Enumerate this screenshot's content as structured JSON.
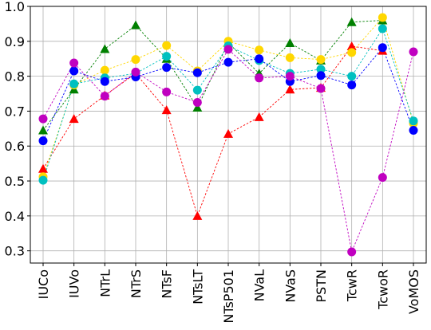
{
  "chart_data": {
    "type": "line",
    "title": "",
    "xlabel": "",
    "ylabel": "",
    "categories": [
      "IUCo",
      "IUVo",
      "NTrL",
      "NTrS",
      "NTsF",
      "NTsLT",
      "NTsP501",
      "NVaL",
      "NVaS",
      "PSTN",
      "TcwR",
      "TcwoR",
      "VoMOS"
    ],
    "ylim": [
      0.265,
      1.0
    ],
    "yticks": [
      "0.3",
      "0.4",
      "0.5",
      "0.6",
      "0.7",
      "0.8",
      "0.9",
      "1.0"
    ],
    "grid": true,
    "legend": "none",
    "series": [
      {
        "color": "#ff0000",
        "marker": "triangle",
        "values": [
          0.535,
          0.678,
          0.745,
          0.808,
          0.703,
          0.4,
          0.635,
          0.683,
          0.762,
          0.767,
          0.886,
          0.873,
          null
        ]
      },
      {
        "color": "#008000",
        "marker": "triangle",
        "values": [
          0.645,
          0.762,
          0.878,
          0.946,
          0.85,
          0.71,
          0.896,
          0.808,
          0.895,
          0.845,
          0.955,
          0.96,
          null
        ]
      },
      {
        "color": "#ffd700",
        "marker": "circle",
        "values": [
          0.512,
          0.775,
          0.817,
          0.848,
          0.888,
          0.815,
          0.9,
          0.875,
          0.853,
          0.848,
          0.868,
          0.968,
          0.665
        ]
      },
      {
        "color": "#00c0c0",
        "marker": "circle",
        "values": [
          0.502,
          0.778,
          0.795,
          0.808,
          0.857,
          0.76,
          0.887,
          0.845,
          0.808,
          0.82,
          0.8,
          0.936,
          0.672
        ]
      },
      {
        "color": "#0000ff",
        "marker": "circle",
        "values": [
          0.615,
          0.815,
          0.785,
          0.798,
          0.825,
          0.81,
          0.84,
          0.85,
          0.785,
          0.802,
          0.775,
          0.882,
          0.645
        ]
      },
      {
        "color": "#c000c0",
        "marker": "circle",
        "values": [
          0.678,
          0.838,
          0.743,
          0.812,
          0.755,
          0.725,
          0.877,
          0.795,
          0.8,
          0.765,
          0.297,
          0.51,
          0.87
        ]
      }
    ]
  }
}
